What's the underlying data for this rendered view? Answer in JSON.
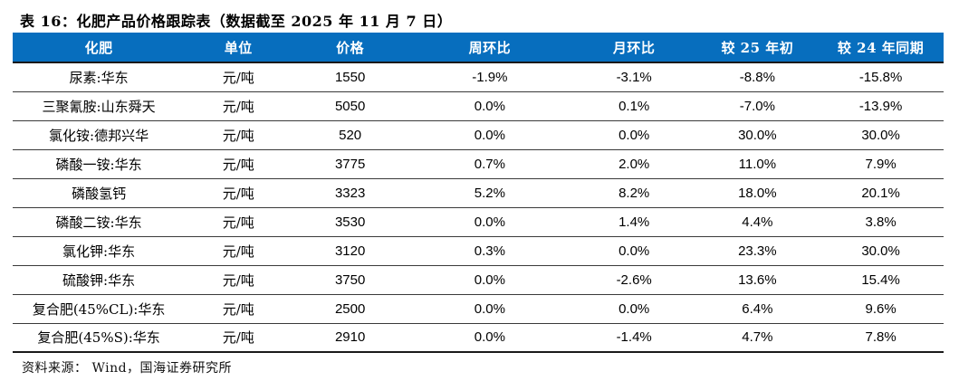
{
  "title": "表 16：化肥产品价格跟踪表（数据截至 2025 年 11 月 7 日）",
  "source": "资料来源： Wind，国海证券研究所",
  "colors": {
    "header_bg": "#076EBE",
    "header_text": "#FFFFFF",
    "row_border": "#3A3A3A"
  },
  "chart_data": {
    "type": "table",
    "title": "化肥产品价格跟踪表（数据截至 2025 年 11 月 7 日）",
    "headers": [
      "化肥",
      "单位",
      "价格",
      "周环比",
      "月环比",
      "较 25 年初",
      "较 24 年同期"
    ],
    "rows": [
      [
        "尿素:华东",
        "元/吨",
        "1550",
        "-1.9%",
        "-3.1%",
        "-8.8%",
        "-15.8%"
      ],
      [
        "三聚氰胺:山东舜天",
        "元/吨",
        "5050",
        "0.0%",
        "0.1%",
        "-7.0%",
        "-13.9%"
      ],
      [
        "氯化铵:德邦兴华",
        "元/吨",
        "520",
        "0.0%",
        "0.0%",
        "30.0%",
        "30.0%"
      ],
      [
        "磷酸一铵:华东",
        "元/吨",
        "3775",
        "0.7%",
        "2.0%",
        "11.0%",
        "7.9%"
      ],
      [
        "磷酸氢钙",
        "元/吨",
        "3323",
        "5.2%",
        "8.2%",
        "18.0%",
        "20.1%"
      ],
      [
        "磷酸二铵:华东",
        "元/吨",
        "3530",
        "0.0%",
        "1.4%",
        "4.4%",
        "3.8%"
      ],
      [
        "氯化钾:华东",
        "元/吨",
        "3120",
        "0.3%",
        "0.0%",
        "23.3%",
        "30.0%"
      ],
      [
        "硫酸钾:华东",
        "元/吨",
        "3750",
        "0.0%",
        "-2.6%",
        "13.6%",
        "15.4%"
      ],
      [
        "复合肥(45%CL):华东",
        "元/吨",
        "2500",
        "0.0%",
        "0.0%",
        "6.4%",
        "9.6%"
      ],
      [
        "复合肥(45%S):华东",
        "元/吨",
        "2910",
        "0.0%",
        "-1.4%",
        "4.7%",
        "7.8%"
      ]
    ]
  }
}
